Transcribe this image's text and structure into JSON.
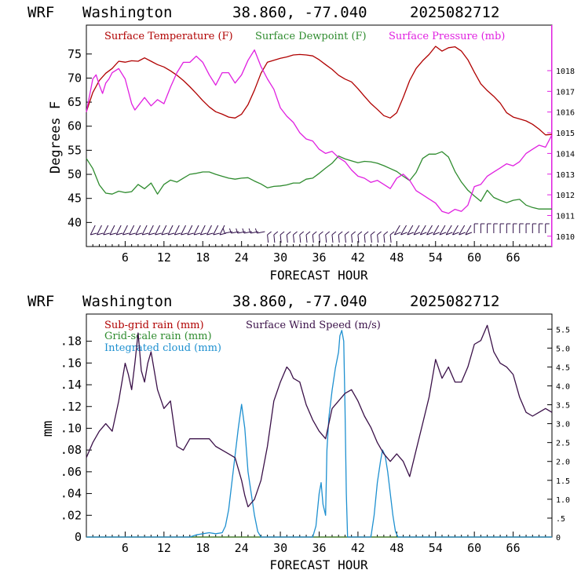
{
  "colors": {
    "temp": "#b00000",
    "dew": "#2e8b2e",
    "pressure": "#e020e0",
    "subgrid": "#b00000",
    "gridscale": "#2e8b2e",
    "cloud": "#1e90d0",
    "wind": "#3a1048",
    "barb": "#30104a"
  },
  "chart_data": [
    {
      "type": "line",
      "title": {
        "model": "WRF",
        "location": "Washington",
        "coords": "38.860, -77.040",
        "run": "2025082712"
      },
      "xlabel": "FORECAST HOUR",
      "ylabel": "Degrees F",
      "xlim": [
        0,
        72
      ],
      "ylim": [
        35,
        81
      ],
      "x_ticks": [
        "6",
        "12",
        "18",
        "24",
        "30",
        "36",
        "42",
        "48",
        "54",
        "60",
        "66"
      ],
      "y_ticks": [
        "40",
        "45",
        "50",
        "55",
        "60",
        "65",
        "70",
        "75"
      ],
      "y2_ticks": [
        "1010",
        "1011",
        "1012",
        "1013",
        "1014",
        "1015",
        "1016",
        "1017",
        "1018"
      ],
      "y2lim": [
        1009.5,
        1020.2
      ],
      "legend": [
        "Surface Temperature (F)",
        "Surface Dewpoint (F)",
        "Surface Pressure (mb)"
      ],
      "series": [
        {
          "name": "Surface Temperature (F)",
          "axis": "left",
          "x": [
            0,
            1,
            2,
            3,
            4,
            5,
            6,
            7,
            8,
            9,
            10,
            11,
            12,
            13,
            14,
            15,
            16,
            17,
            18,
            19,
            20,
            21,
            22,
            23,
            24,
            25,
            26,
            27,
            28,
            29,
            30,
            31,
            32,
            33,
            34,
            35,
            36,
            37,
            38,
            39,
            40,
            41,
            42,
            43,
            44,
            45,
            46,
            47,
            48,
            49,
            50,
            51,
            52,
            53,
            54,
            55,
            56,
            57,
            58,
            59,
            60,
            61,
            62,
            63,
            64,
            65,
            66,
            67,
            68,
            69,
            70,
            71,
            72
          ],
          "y": [
            63,
            67,
            69.5,
            71,
            72,
            73.5,
            73.3,
            73.6,
            73.5,
            74.2,
            73.5,
            72.8,
            72.3,
            71.5,
            70.6,
            69.5,
            68.2,
            66.8,
            65.3,
            64,
            63,
            62.5,
            61.9,
            61.7,
            62.5,
            64.5,
            67.5,
            71,
            73.3,
            73.7,
            74.1,
            74.4,
            74.8,
            74.9,
            74.8,
            74.6,
            73.8,
            72.8,
            71.8,
            70.6,
            69.8,
            69.2,
            67.8,
            66.2,
            64.7,
            63.5,
            62.2,
            61.7,
            62.8,
            66,
            69.5,
            72,
            73.6,
            74.9,
            76.6,
            75.6,
            76.3,
            76.5,
            75.6,
            73.8,
            71.2,
            68.8,
            67.4,
            66.2,
            64.8,
            62.8,
            61.9,
            61.5,
            61.1,
            60.4,
            59.4,
            58.2,
            58.3
          ]
        },
        {
          "name": "Surface Dewpoint (F)",
          "axis": "left",
          "x": [
            0,
            1,
            2,
            3,
            4,
            5,
            6,
            7,
            8,
            9,
            10,
            11,
            12,
            13,
            14,
            15,
            16,
            17,
            18,
            19,
            20,
            21,
            22,
            23,
            24,
            25,
            26,
            27,
            28,
            29,
            30,
            31,
            32,
            33,
            34,
            35,
            36,
            37,
            38,
            39,
            40,
            41,
            42,
            43,
            44,
            45,
            46,
            47,
            48,
            49,
            50,
            51,
            52,
            53,
            54,
            55,
            56,
            57,
            58,
            59,
            60,
            61,
            62,
            63,
            64,
            65,
            66,
            67,
            68,
            69,
            70,
            71,
            72
          ],
          "y": [
            53.3,
            51.2,
            47.8,
            46.1,
            45.9,
            46.5,
            46.2,
            46.4,
            47.9,
            47,
            48.2,
            45.9,
            47.9,
            48.8,
            48.4,
            49.2,
            50,
            50.2,
            50.5,
            50.5,
            50,
            49.6,
            49.2,
            49,
            49.2,
            49.3,
            48.6,
            48,
            47.2,
            47.5,
            47.6,
            47.8,
            48.2,
            48.2,
            49,
            49.2,
            50.2,
            51.3,
            52.3,
            53.8,
            53.2,
            52.8,
            52.4,
            52.7,
            52.6,
            52.3,
            51.8,
            51.2,
            50.6,
            49.6,
            48.7,
            50.4,
            53.3,
            54.2,
            54.2,
            54.7,
            53.6,
            50.6,
            48.4,
            46.7,
            45.5,
            44.4,
            46.7,
            45.2,
            44.6,
            44.1,
            44.6,
            44.8,
            43.6,
            43.1,
            42.8,
            42.8,
            42.8
          ]
        },
        {
          "name": "Surface Pressure (mb)",
          "axis": "right",
          "x": [
            0,
            0.5,
            1,
            1.5,
            2,
            2.5,
            3,
            3.5,
            4,
            5,
            6,
            7,
            7.5,
            8,
            9,
            10,
            11,
            12,
            13,
            14,
            15,
            16,
            17,
            18,
            19,
            20,
            21,
            22,
            23,
            24,
            25,
            26,
            27,
            28,
            29,
            30,
            31,
            32,
            33,
            34,
            35,
            36,
            37,
            38,
            39,
            40,
            41,
            42,
            43,
            44,
            45,
            46,
            47,
            48,
            49,
            50,
            51,
            52,
            53,
            54,
            55,
            56,
            57,
            58,
            59,
            60,
            61,
            62,
            63,
            64,
            65,
            66,
            67,
            68,
            69,
            70,
            71,
            72
          ],
          "y": [
            1016,
            1016.8,
            1017.6,
            1017.8,
            1017.3,
            1016.9,
            1017.4,
            1017.6,
            1017.9,
            1018.1,
            1017.6,
            1016.4,
            1016.1,
            1016.3,
            1016.7,
            1016.3,
            1016.6,
            1016.4,
            1017.2,
            1017.9,
            1018.4,
            1018.4,
            1018.7,
            1018.4,
            1017.8,
            1017.3,
            1017.9,
            1017.9,
            1017.4,
            1017.8,
            1018.5,
            1019,
            1018.2,
            1017.6,
            1017.1,
            1016.2,
            1015.8,
            1015.5,
            1015,
            1014.7,
            1014.6,
            1014.2,
            1014,
            1014.1,
            1013.8,
            1013.6,
            1013.2,
            1012.9,
            1012.8,
            1012.6,
            1012.7,
            1012.5,
            1012.3,
            1012.8,
            1013,
            1012.7,
            1012.2,
            1012,
            1011.8,
            1011.6,
            1011.2,
            1011.1,
            1011.3,
            1011.2,
            1011.5,
            1012.4,
            1012.5,
            1012.9,
            1013.1,
            1013.3,
            1013.5,
            1013.4,
            1013.6,
            1014,
            1014.2,
            1014.4,
            1014.3,
            1014.9
          ]
        }
      ]
    },
    {
      "type": "line",
      "title": {
        "model": "WRF",
        "location": "Washington",
        "coords": "38.860, -77.040",
        "run": "2025082712"
      },
      "xlabel": "FORECAST HOUR",
      "ylabel": "mm",
      "xlim": [
        0,
        72
      ],
      "ylim": [
        0,
        0.205
      ],
      "x_ticks": [
        "6",
        "12",
        "18",
        "24",
        "30",
        "36",
        "42",
        "48",
        "54",
        "60",
        "66"
      ],
      "y_ticks": [
        "0",
        ".02",
        ".04",
        ".06",
        ".08",
        ".10",
        ".12",
        ".14",
        ".16",
        ".18"
      ],
      "y2_ticks": [
        "0",
        ".5",
        "1.0",
        "1.5",
        "2.0",
        "2.5",
        "3.0",
        "3.5",
        "4.0",
        "4.5",
        "5.0",
        "5.5"
      ],
      "y2lim": [
        0,
        5.9
      ],
      "legend": [
        "Sub-grid rain (mm)",
        "Grid-scale rain (mm)",
        "Integrated cloud (mm)",
        "Surface Wind Speed (m/s)"
      ],
      "series": [
        {
          "name": "Sub-grid rain (mm)",
          "axis": "left",
          "x": [
            0,
            72
          ],
          "y": [
            0,
            0
          ]
        },
        {
          "name": "Grid-scale rain (mm)",
          "axis": "left",
          "x": [
            0,
            72
          ],
          "y": [
            0,
            0
          ]
        },
        {
          "name": "Integrated cloud (mm)",
          "axis": "left",
          "x": [
            0,
            16,
            17,
            18,
            19,
            20,
            21,
            21.5,
            22,
            22.5,
            23,
            23.5,
            24,
            24.5,
            25,
            25.5,
            26,
            26.5,
            27,
            34,
            35,
            35.5,
            36,
            36.3,
            36.6,
            37,
            37.2,
            37.5,
            38,
            38.5,
            39,
            39.2,
            39.5,
            39.8,
            40,
            40.2,
            40.4,
            44,
            44.5,
            45,
            45.5,
            45.8,
            46.2,
            46.6,
            47,
            47.4,
            47.8,
            48.2,
            72
          ],
          "y": [
            0,
            0,
            0.002,
            0.003,
            0.004,
            0.003,
            0.004,
            0.01,
            0.025,
            0.05,
            0.075,
            0.1,
            0.122,
            0.1,
            0.06,
            0.04,
            0.02,
            0.005,
            0,
            0,
            0,
            0.01,
            0.04,
            0.05,
            0.03,
            0.02,
            0.08,
            0.11,
            0.135,
            0.155,
            0.17,
            0.185,
            0.19,
            0.18,
            0.12,
            0.04,
            0,
            0,
            0.02,
            0.05,
            0.07,
            0.08,
            0.075,
            0.06,
            0.04,
            0.02,
            0.005,
            0,
            0
          ]
        },
        {
          "name": "Surface Wind Speed (m/s)",
          "axis": "right",
          "x": [
            0,
            1,
            2,
            3,
            4,
            5,
            6,
            6.5,
            7,
            7.5,
            8,
            8.5,
            9,
            9.5,
            10,
            11,
            12,
            13,
            14,
            15,
            16,
            17,
            18,
            19,
            20,
            21,
            22,
            23,
            24,
            24.5,
            25,
            26,
            27,
            28,
            29,
            30,
            31,
            31.5,
            32,
            33,
            34,
            35,
            36,
            37,
            38,
            39,
            40,
            41,
            42,
            43,
            44,
            45,
            46,
            47,
            48,
            49,
            50,
            51,
            52,
            53,
            54,
            55,
            56,
            57,
            58,
            59,
            60,
            61,
            62,
            63,
            64,
            65,
            66,
            67,
            68,
            69,
            70,
            71,
            72
          ],
          "y": [
            2.1,
            2.5,
            2.8,
            3,
            2.8,
            3.6,
            4.6,
            4.3,
            3.9,
            4.6,
            5.4,
            4.4,
            4.1,
            4.6,
            4.9,
            3.9,
            3.4,
            3.6,
            2.4,
            2.3,
            2.6,
            2.6,
            2.6,
            2.6,
            2.4,
            2.3,
            2.2,
            2.1,
            1.5,
            1.1,
            0.8,
            1,
            1.5,
            2.4,
            3.6,
            4.1,
            4.5,
            4.4,
            4.2,
            4.1,
            3.5,
            3.1,
            2.8,
            2.6,
            3.4,
            3.6,
            3.8,
            3.9,
            3.6,
            3.2,
            2.9,
            2.5,
            2.2,
            2,
            2.2,
            2,
            1.6,
            2.3,
            3,
            3.7,
            4.7,
            4.2,
            4.5,
            4.1,
            4.1,
            4.5,
            5.1,
            5.2,
            5.6,
            4.9,
            4.6,
            4.5,
            4.3,
            3.7,
            3.3,
            3.2,
            3.3,
            3.4,
            3.3
          ]
        }
      ]
    }
  ]
}
